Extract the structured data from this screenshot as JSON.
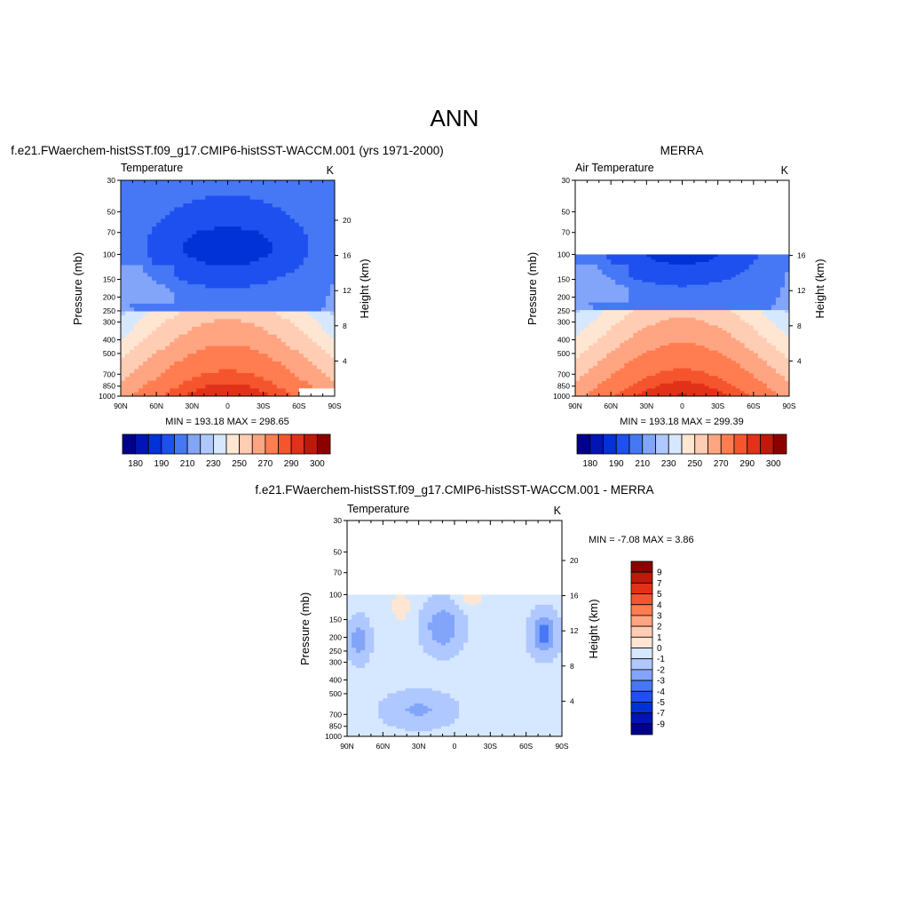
{
  "figure": {
    "title": "ANN"
  },
  "colors": {
    "abs": [
      "#00008c",
      "#0015b4",
      "#0032d7",
      "#1e50f0",
      "#4678f5",
      "#82a5fa",
      "#afc8ff",
      "#d6e8ff",
      "#ffe6d2",
      "#ffcdb4",
      "#ffa582",
      "#ff7d50",
      "#f5552d",
      "#e13219",
      "#be190a",
      "#8c0000"
    ],
    "diff": [
      "#00008c",
      "#0015b4",
      "#0032d7",
      "#1e50f0",
      "#4678f5",
      "#82a5fa",
      "#afc8ff",
      "#d6e8ff",
      "#ffe6d2",
      "#ffcdb4",
      "#ffa582",
      "#ff7d50",
      "#f5552d",
      "#e13219",
      "#be190a",
      "#8c0000"
    ]
  },
  "chart_data": [
    {
      "type": "heatmap",
      "title": "f.e21.FWaerchem-histSST.f09_g17.CMIP6-histSST-WACCM.001 (yrs 1971-2000)",
      "left_label": "Temperature",
      "right_label": "K",
      "xlabel": "",
      "ylabel": "Pressure (mb)",
      "y2label": "Height (km)",
      "x_ticks": [
        "90N",
        "60N",
        "30N",
        "0",
        "30S",
        "60S",
        "90S"
      ],
      "y_ticks": [
        "30",
        "50",
        "70",
        "100",
        "150",
        "200",
        "250",
        "300",
        "400",
        "500",
        "700",
        "850",
        "1000"
      ],
      "y2_ticks": [
        "4",
        "8",
        "12",
        "16",
        "20"
      ],
      "ylim": [
        1000,
        30
      ],
      "stats": "MIN = 193.18  MAX = 298.65",
      "data_top_mb": 30,
      "colorbar": {
        "labels": [
          "180",
          "190",
          "210",
          "230",
          "250",
          "270",
          "290",
          "300"
        ]
      }
    },
    {
      "type": "heatmap",
      "title": "MERRA",
      "left_label": "Air Temperature",
      "right_label": "K",
      "xlabel": "",
      "ylabel": "Pressure (mb)",
      "y2label": "Height (km)",
      "x_ticks": [
        "90N",
        "60N",
        "30N",
        "0",
        "30S",
        "60S",
        "90S"
      ],
      "y_ticks": [
        "30",
        "50",
        "70",
        "100",
        "150",
        "200",
        "250",
        "300",
        "400",
        "500",
        "700",
        "850",
        "1000"
      ],
      "y2_ticks": [
        "4",
        "8",
        "12",
        "16"
      ],
      "ylim": [
        1000,
        30
      ],
      "stats": "MIN = 193.18  MAX = 299.39",
      "data_top_mb": 100,
      "colorbar": {
        "labels": [
          "180",
          "190",
          "210",
          "230",
          "250",
          "270",
          "290",
          "300"
        ]
      }
    },
    {
      "type": "heatmap",
      "title": "f.e21.FWaerchem-histSST.f09_g17.CMIP6-histSST-WACCM.001 - MERRA",
      "left_label": "Temperature",
      "right_label": "K",
      "xlabel": "",
      "ylabel": "Pressure (mb)",
      "y2label": "Height (km)",
      "x_ticks": [
        "90N",
        "60N",
        "30N",
        "0",
        "30S",
        "60S",
        "90S"
      ],
      "y_ticks": [
        "30",
        "50",
        "70",
        "100",
        "150",
        "200",
        "250",
        "300",
        "400",
        "500",
        "700",
        "850",
        "1000"
      ],
      "y2_ticks": [
        "4",
        "8",
        "12",
        "16",
        "20"
      ],
      "ylim": [
        1000,
        30
      ],
      "stats": "MIN =  -7.08  MAX =   3.86",
      "data_top_mb": 100,
      "colorbar": {
        "labels": [
          "9",
          "7",
          "5",
          "4",
          "3",
          "2",
          "1",
          "0",
          "-1",
          "-2",
          "-3",
          "-4",
          "-5",
          "-7",
          "-9"
        ]
      }
    }
  ]
}
